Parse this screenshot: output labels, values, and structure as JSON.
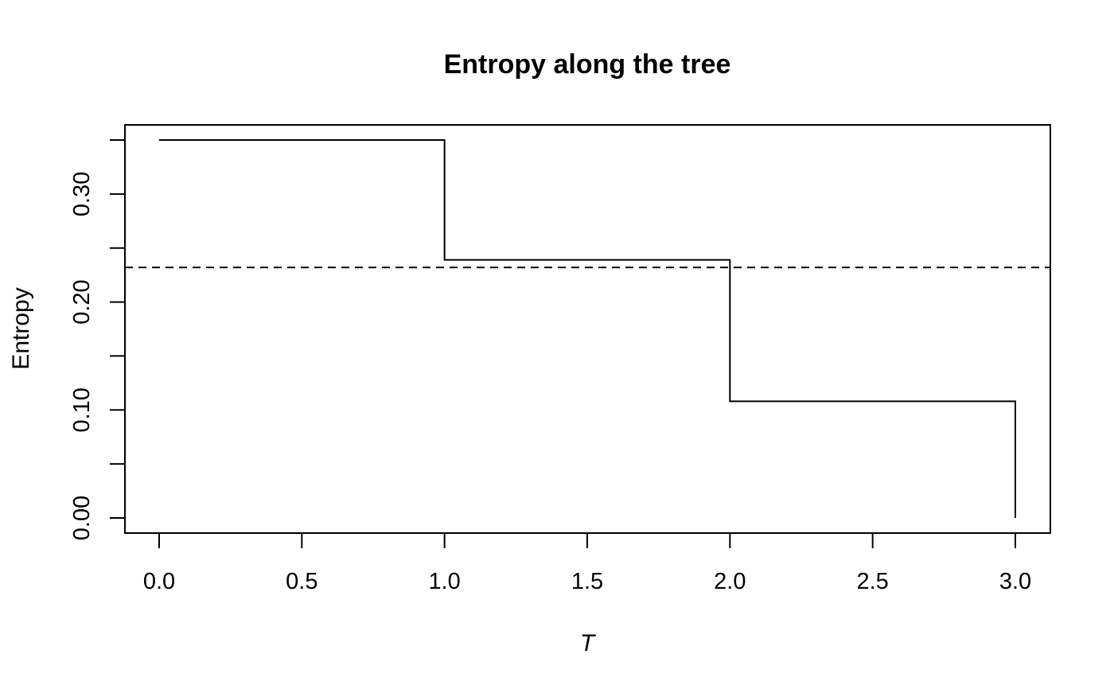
{
  "chart_data": {
    "type": "line",
    "title": "Entropy along the tree",
    "xlabel": "T",
    "ylabel": "Entropy",
    "xlim": [
      0,
      3
    ],
    "ylim": [
      0,
      0.35
    ],
    "x_ticks": [
      0.0,
      0.5,
      1.0,
      1.5,
      2.0,
      2.5,
      3.0
    ],
    "x_tick_labels": [
      "0.0",
      "0.5",
      "1.0",
      "1.5",
      "2.0",
      "2.5",
      "3.0"
    ],
    "y_ticks": [
      0.0,
      0.05,
      0.1,
      0.15,
      0.2,
      0.25,
      0.3,
      0.35
    ],
    "y_tick_labels": [
      "0.00",
      "",
      "0.10",
      "",
      "0.20",
      "",
      "0.30",
      ""
    ],
    "grid": false,
    "series": [
      {
        "style": "step",
        "color": "#000000",
        "x": [
          0,
          1,
          1,
          2,
          2,
          3,
          3
        ],
        "y": [
          0.35,
          0.35,
          0.239,
          0.239,
          0.108,
          0.108,
          0.0
        ]
      }
    ],
    "reference_lines": [
      {
        "orientation": "horizontal",
        "y": 0.232,
        "dash": "dashed",
        "color": "#000000"
      }
    ]
  }
}
